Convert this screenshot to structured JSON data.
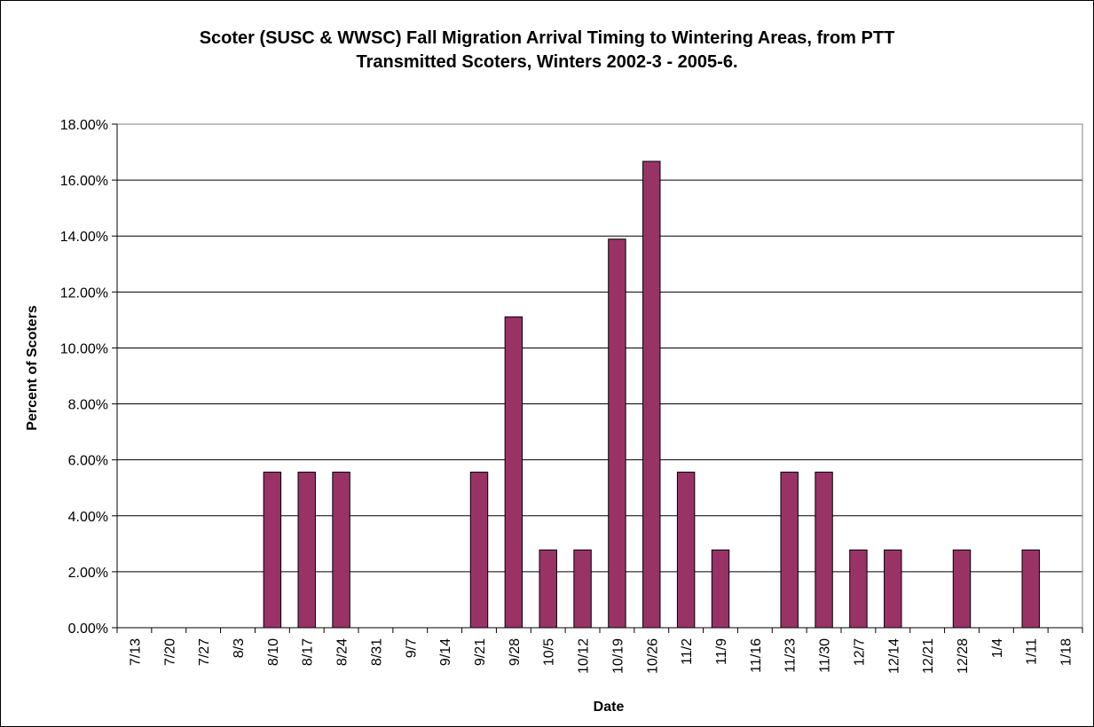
{
  "chart_data": {
    "type": "bar",
    "title_line1": "Scoter (SUSC & WWSC) Fall Migration Arrival Timing to Wintering Areas, from PTT",
    "title_line2": "Transmitted Scoters, Winters 2002-3 - 2005-6.",
    "xlabel": "Date",
    "ylabel": "Percent of Scoters",
    "ylim": [
      0,
      18
    ],
    "yticks": [
      "0.00%",
      "2.00%",
      "4.00%",
      "6.00%",
      "8.00%",
      "10.00%",
      "12.00%",
      "14.00%",
      "16.00%",
      "18.00%"
    ],
    "grid": true,
    "bar_color": "#993366",
    "categories": [
      "7/13",
      "7/20",
      "7/27",
      "8/3",
      "8/10",
      "8/17",
      "8/24",
      "8/31",
      "9/7",
      "9/14",
      "9/21",
      "9/28",
      "10/5",
      "10/12",
      "10/19",
      "10/26",
      "11/2",
      "11/9",
      "11/16",
      "11/23",
      "11/30",
      "12/7",
      "12/14",
      "12/21",
      "12/28",
      "1/4",
      "1/11",
      "1/18"
    ],
    "values": [
      0,
      0,
      0,
      0,
      5.56,
      5.56,
      5.56,
      0,
      0,
      0,
      5.56,
      11.11,
      2.78,
      2.78,
      13.89,
      16.67,
      5.56,
      2.78,
      0,
      5.56,
      5.56,
      2.78,
      2.78,
      0,
      2.78,
      0,
      2.78,
      0
    ]
  }
}
